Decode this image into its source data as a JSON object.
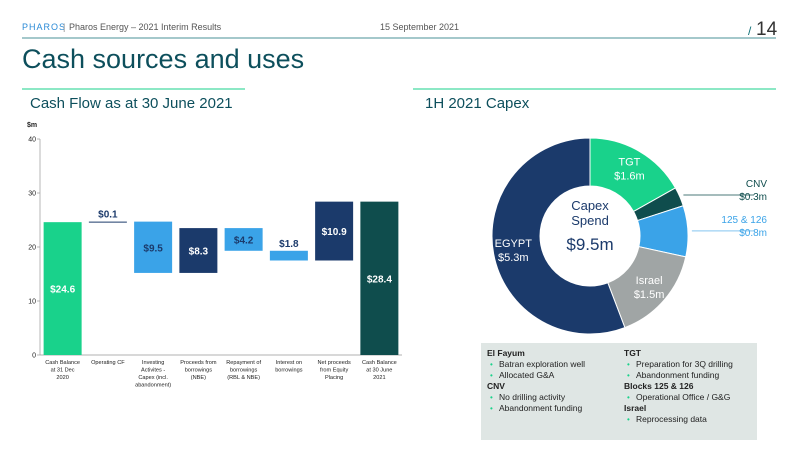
{
  "header": {
    "brand": "PHAROS",
    "subtitle": "Pharos Energy – 2021 Interim Results",
    "date": "15 September 2021",
    "page": "14"
  },
  "title": "Cash sources and uses",
  "chart_data": [
    {
      "type": "waterfall",
      "title": "Cash Flow as at 30 June 2021",
      "y_label": "$m",
      "categories": [
        "Cash Balance at 31 Dec 2020",
        "Operating CF",
        "Investing Activites - Capex (incl. abandonment)",
        "Proceeds from borrowings (NBE)",
        "Repayment of borrowings (RBL & NBE)",
        "Interest on borrowings",
        "Net proceeds from Equity Placing",
        "Cash Balance at 30 June 2021"
      ],
      "values": [
        24.6,
        0.1,
        -9.5,
        8.3,
        -4.2,
        -1.8,
        10.9,
        28.4
      ],
      "value_labels": [
        "$24.6",
        "$0.1",
        "$9.5",
        "$8.3",
        "$4.2",
        "$1.8",
        "$10.9",
        "$28.4"
      ],
      "measures": [
        "absolute",
        "relative",
        "relative",
        "relative",
        "relative",
        "relative",
        "relative",
        "absolute"
      ],
      "colors": [
        "#19d28b",
        "#1b3a6b",
        "#3aa3e8",
        "#1b3a6b",
        "#3aa3e8",
        "#3aa3e8",
        "#1b3a6b",
        "#0f4d4d"
      ],
      "ylim": [
        0,
        40
      ],
      "yticks": [
        0,
        10,
        20,
        30,
        40
      ]
    },
    {
      "type": "donut",
      "title": "1H 2021 Capex",
      "center_label": "Capex Spend",
      "center_value": "$9.5m",
      "categories": [
        "TGT",
        "CNV",
        "125 & 126",
        "Israel",
        "EGYPT"
      ],
      "values": [
        1.6,
        0.3,
        0.8,
        1.5,
        5.3
      ],
      "value_labels": [
        "$1.6m",
        "$0.3m",
        "$0.8m",
        "$1.5m",
        "$5.3m"
      ],
      "colors": [
        "#19d28b",
        "#0f4d4d",
        "#3aa3e8",
        "#a0a5a5",
        "#1b3a6b"
      ]
    }
  ],
  "notes": {
    "columns": [
      [
        {
          "heading": "El Fayum",
          "items": [
            "Batran exploration well",
            "Allocated G&A"
          ]
        },
        {
          "heading": "CNV",
          "items": [
            "No drilling activity",
            "Abandonment funding"
          ]
        }
      ],
      [
        {
          "heading": "TGT",
          "items": [
            "Preparation for 3Q drilling",
            "Abandonment funding"
          ]
        },
        {
          "heading": "Blocks 125 & 126",
          "items": [
            "Operational Office / G&G"
          ]
        },
        {
          "heading": "Israel",
          "items": [
            "Reprocessing data"
          ]
        }
      ]
    ]
  }
}
